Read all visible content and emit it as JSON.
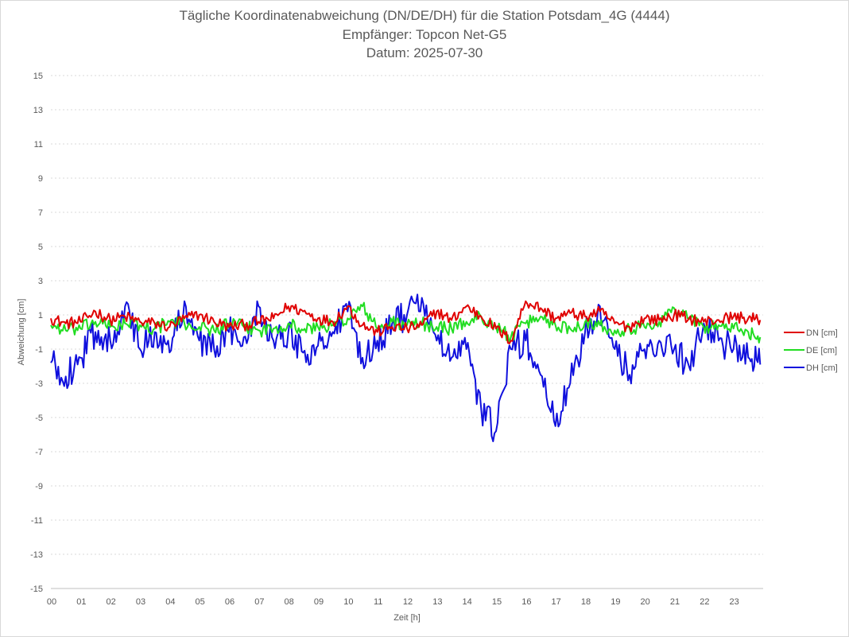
{
  "chart_data": {
    "type": "line",
    "title": "Tägliche Koordinatenabweichung (DN/DE/DH) für die Station Potsdam_4G (4444)",
    "subtitle": [
      "Empfänger: Topcon Net-G5",
      "Datum: 2025-07-30"
    ],
    "xlabel": "Zeit [h]",
    "ylabel": "Abweichung [cm]",
    "xlim": [
      0,
      24
    ],
    "ylim": [
      -15,
      15
    ],
    "x_ticks": [
      "00",
      "01",
      "02",
      "03",
      "04",
      "05",
      "06",
      "07",
      "08",
      "09",
      "10",
      "11",
      "12",
      "13",
      "14",
      "15",
      "16",
      "17",
      "18",
      "19",
      "20",
      "21",
      "22",
      "23"
    ],
    "y_ticks": [
      15,
      13,
      11,
      9,
      7,
      5,
      3,
      1,
      -1,
      -3,
      -5,
      -7,
      -9,
      -11,
      -13,
      -15
    ],
    "grid": "horizontal dotted",
    "legend_position": "right",
    "x": [
      0,
      0.5,
      1,
      1.5,
      2,
      2.5,
      3,
      3.5,
      4,
      4.5,
      5,
      5.5,
      6,
      6.5,
      7,
      7.5,
      8,
      8.5,
      9,
      9.5,
      10,
      10.5,
      11,
      11.5,
      12,
      12.5,
      13,
      13.5,
      14,
      14.5,
      15,
      15.5,
      16,
      16.5,
      17,
      17.5,
      18,
      18.5,
      19,
      19.5,
      20,
      20.5,
      21,
      21.5,
      22,
      22.5,
      23,
      23.5,
      23.9
    ],
    "series": [
      {
        "name": "DN [cm]",
        "color": "#e00000",
        "values": [
          0.8,
          0.5,
          0.6,
          1.2,
          0.7,
          0.9,
          0.6,
          0.5,
          0.3,
          0.8,
          1.0,
          0.6,
          0.3,
          0.4,
          0.6,
          0.8,
          1.5,
          1.2,
          0.8,
          0.6,
          1.5,
          0.4,
          0.0,
          0.3,
          0.2,
          0.4,
          1.2,
          0.7,
          1.5,
          0.9,
          0.2,
          -0.5,
          1.8,
          1.4,
          0.8,
          1.1,
          0.9,
          1.2,
          0.5,
          0.3,
          0.8,
          0.7,
          1.0,
          0.8,
          0.6,
          0.7,
          0.9,
          0.8,
          0.7
        ]
      },
      {
        "name": "DE [cm]",
        "color": "#22dd22",
        "values": [
          0.4,
          0.1,
          0.2,
          0.6,
          0.3,
          0.5,
          0.4,
          0.2,
          0.6,
          0.5,
          0.3,
          0.1,
          0.5,
          0.3,
          0.1,
          0.2,
          0.5,
          0.1,
          0.3,
          0.4,
          0.8,
          1.5,
          0.2,
          0.6,
          0.4,
          0.5,
          0.3,
          0.2,
          0.6,
          0.9,
          0.3,
          -0.3,
          0.5,
          0.9,
          0.4,
          0.2,
          0.6,
          0.4,
          0.1,
          0.2,
          0.3,
          0.6,
          1.4,
          0.8,
          0.3,
          0.4,
          0.2,
          0.0,
          -0.3
        ]
      },
      {
        "name": "DH [cm]",
        "color": "#1010dd",
        "values": [
          -1.8,
          -2.6,
          -1.5,
          0.0,
          -0.5,
          1.5,
          -1.0,
          0.0,
          -1.2,
          1.8,
          -0.5,
          -1.0,
          0.0,
          -0.3,
          1.5,
          -0.5,
          0.0,
          -1.2,
          -0.8,
          0.0,
          1.2,
          -1.5,
          -0.5,
          0.5,
          1.0,
          2.0,
          -0.5,
          -1.5,
          -1.0,
          -4.5,
          -5.8,
          -1.0,
          -0.5,
          -2.5,
          -5.5,
          -3.0,
          0.0,
          1.5,
          -1.0,
          -2.5,
          -1.0,
          -0.5,
          -1.0,
          -2.0,
          0.5,
          -0.5,
          -1.0,
          -1.5,
          -1.9
        ]
      }
    ]
  }
}
